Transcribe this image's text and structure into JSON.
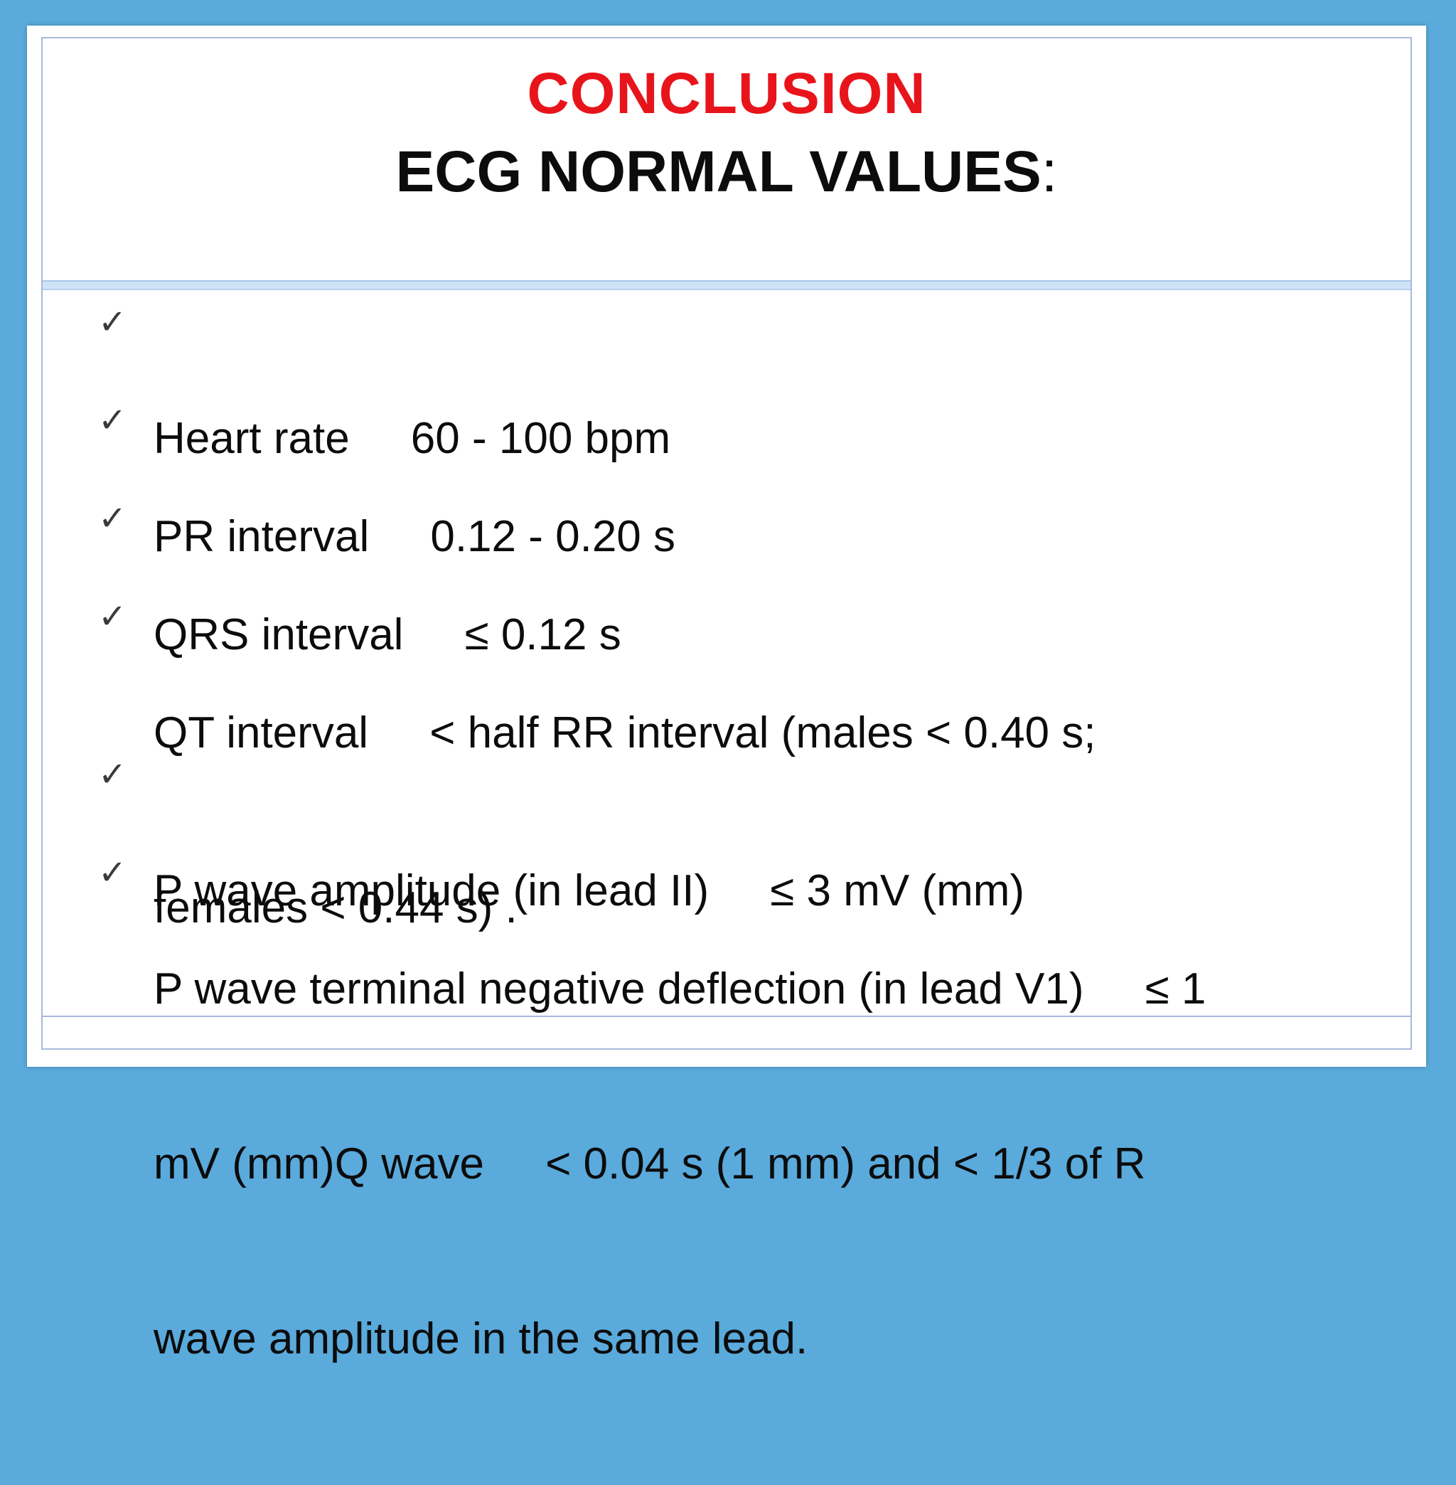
{
  "title": {
    "line1": "CONCLUSION",
    "line2": "ECG NORMAL VALUES",
    "line2_suffix": ":",
    "line1_color": "#e8141b",
    "line2_color": "#0c0c0c"
  },
  "bullet_icon": "check-icon",
  "bullet_glyph": "✓",
  "bullets": [
    {
      "lines": [
        "Heart rate     60 - 100 bpm"
      ]
    },
    {
      "lines": [
        "PR interval     0.12 - 0.20 s"
      ]
    },
    {
      "lines": [
        "QRS interval     ≤ 0.12 s"
      ]
    },
    {
      "lines": [
        "QT interval     < half RR interval (males < 0.40 s;",
        "females < 0.44 s) ."
      ]
    },
    {
      "lines": [
        "P wave amplitude (in lead II)     ≤ 3 mV (mm)"
      ]
    },
    {
      "lines": [
        "P wave terminal negative deflection (in lead V1)     ≤ 1",
        "mV (mm)Q wave     < 0.04 s (1 mm) and < 1/3 of R",
        "wave amplitude in the same lead."
      ]
    }
  ],
  "colors": {
    "background": "#5aaadc",
    "slide": "#ffffff",
    "frame": "#a8b9dd",
    "divider": "#cfe3f6"
  }
}
